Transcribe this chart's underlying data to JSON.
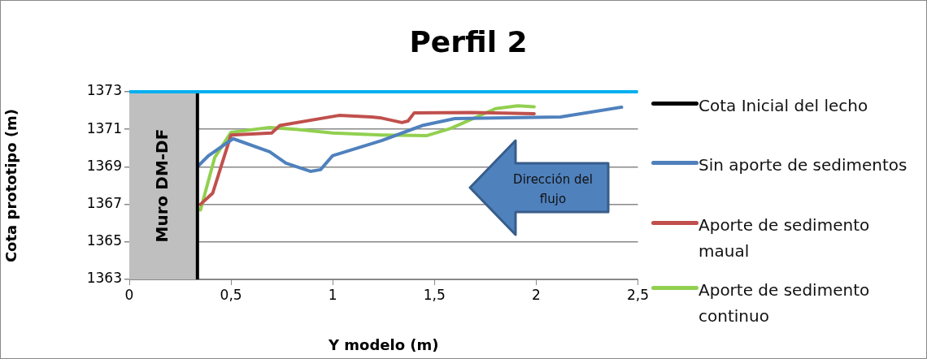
{
  "chart_data": {
    "type": "line",
    "title": "Perfil 2",
    "xlabel": "Y modelo (m)",
    "ylabel": "Cota prototipo (m)",
    "xlim": [
      0,
      2.5
    ],
    "xticks": [
      0,
      {
        "value": 0.5,
        "label": "0,5"
      },
      1,
      {
        "value": 1.5,
        "label": "1,5"
      },
      2,
      {
        "value": 2.5,
        "label": "2,5"
      }
    ],
    "ylim": [
      1363,
      1373
    ],
    "yticks": [
      1363,
      1365,
      1367,
      1369,
      1371,
      1373
    ],
    "grid": "y",
    "legend": "right",
    "marker": "none",
    "line_style": "solid",
    "series": [
      {
        "name": "Cota Inicial del lecho",
        "color": "#000000",
        "x": [
          0.335,
          0.335
        ],
        "values": [
          1363,
          1373
        ]
      },
      {
        "name": "Sin aporte de sedimentos",
        "color": "#4f81bd",
        "x": [
          0.34,
          0.39,
          0.51,
          0.69,
          0.77,
          0.89,
          0.94,
          1.0,
          1.24,
          1.44,
          1.6,
          2.12,
          2.42
        ],
        "values": [
          1369.06,
          1369.6,
          1370.5,
          1369.8,
          1369.2,
          1368.76,
          1368.85,
          1369.6,
          1370.4,
          1371.2,
          1371.57,
          1371.66,
          1372.18
        ]
      },
      {
        "name": "Aporte de sedimento maual",
        "color": "#c0504d",
        "x": [
          0.35,
          0.41,
          0.5,
          0.7,
          0.74,
          1.03,
          1.19,
          1.24,
          1.34,
          1.37,
          1.4,
          1.68,
          1.79,
          1.99
        ],
        "values": [
          1367.0,
          1367.6,
          1370.7,
          1370.8,
          1371.2,
          1371.74,
          1371.66,
          1371.6,
          1371.36,
          1371.44,
          1371.87,
          1371.9,
          1371.87,
          1371.83
        ]
      },
      {
        "name": "Aporte de sedimento continuo",
        "color": "#92d050",
        "x": [
          0.35,
          0.42,
          0.5,
          0.69,
          0.82,
          1.0,
          1.24,
          1.46,
          1.58,
          1.8,
          1.91,
          1.99
        ],
        "values": [
          1366.7,
          1369.5,
          1370.84,
          1371.1,
          1371.0,
          1370.8,
          1370.7,
          1370.66,
          1371.05,
          1372.1,
          1372.25,
          1372.2
        ]
      }
    ],
    "ref_lines": [
      {
        "axis": "y",
        "value": 1373,
        "color": "#00b0f0"
      }
    ],
    "bands": [
      {
        "axis": "x",
        "from": 0,
        "to": 0.335,
        "label": "Muro DM-DF",
        "color": "#bfbfbf"
      }
    ],
    "annotations": [
      "Dirección del flujo"
    ]
  }
}
